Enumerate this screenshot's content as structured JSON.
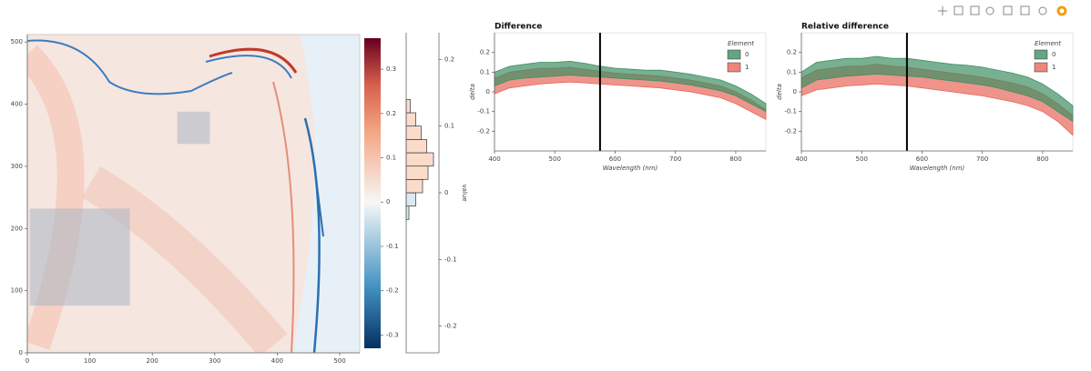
{
  "chart_data": [
    {
      "type": "image",
      "xlim": [
        0,
        532
      ],
      "ylim": [
        0,
        512
      ],
      "xticks": [
        0,
        100,
        200,
        300,
        400,
        500
      ],
      "yticks": [
        0,
        100,
        200,
        300,
        400,
        500
      ],
      "selections": [
        {
          "x": [
            240,
            292
          ],
          "y": [
            336,
            388
          ]
        },
        {
          "x": [
            4,
            164
          ],
          "y": [
            76,
            232
          ]
        }
      ]
    },
    {
      "type": "colorbar",
      "clim": [
        -0.33,
        0.37
      ],
      "ticks": [
        -0.3,
        -0.2,
        -0.1,
        0,
        0.1,
        0.2,
        0.3
      ]
    },
    {
      "type": "histogram",
      "ylabel": "value",
      "ylim": [
        -0.24,
        0.24
      ],
      "yticks": [
        -0.2,
        -0.1,
        0,
        0.1,
        0.2
      ],
      "xlim": [
        0,
        24
      ],
      "bins": [
        -0.04,
        -0.02,
        0,
        0.02,
        0.04,
        0.06,
        0.08,
        0.1,
        0.12,
        0.14
      ],
      "counts": [
        2,
        7,
        12,
        16,
        20,
        15,
        11,
        7,
        3
      ]
    },
    {
      "type": "area",
      "title": "Difference",
      "xlabel": "Wavelength (nm)",
      "ylabel": "delta",
      "xlim": [
        400,
        850
      ],
      "ylim": [
        -0.3,
        0.3
      ],
      "xticks": [
        400,
        500,
        600,
        700,
        800
      ],
      "yticks": [
        -0.2,
        -0.1,
        0,
        0.1,
        0.2
      ],
      "vline": 575,
      "legend_title": "Element",
      "x": [
        400,
        425,
        450,
        475,
        500,
        525,
        550,
        575,
        600,
        625,
        650,
        675,
        700,
        725,
        750,
        775,
        800,
        825,
        850
      ],
      "series": [
        {
          "name": "1",
          "color": "#e8665a",
          "upper": [
            0.07,
            0.1,
            0.11,
            0.12,
            0.12,
            0.125,
            0.115,
            0.105,
            0.095,
            0.09,
            0.085,
            0.08,
            0.07,
            0.06,
            0.045,
            0.03,
            0.0,
            -0.04,
            -0.09
          ],
          "lower": [
            -0.01,
            0.02,
            0.03,
            0.04,
            0.045,
            0.05,
            0.045,
            0.04,
            0.035,
            0.03,
            0.025,
            0.02,
            0.01,
            0.0,
            -0.015,
            -0.03,
            -0.06,
            -0.1,
            -0.14
          ]
        },
        {
          "name": "0",
          "color": "#3f8f63",
          "upper": [
            0.1,
            0.13,
            0.14,
            0.15,
            0.15,
            0.155,
            0.145,
            0.13,
            0.12,
            0.115,
            0.11,
            0.11,
            0.1,
            0.09,
            0.075,
            0.06,
            0.03,
            -0.01,
            -0.06
          ],
          "lower": [
            0.03,
            0.06,
            0.07,
            0.075,
            0.08,
            0.085,
            0.08,
            0.075,
            0.07,
            0.065,
            0.06,
            0.055,
            0.045,
            0.035,
            0.02,
            0.005,
            -0.02,
            -0.06,
            -0.1
          ]
        }
      ]
    },
    {
      "type": "area",
      "title": "Relative difference",
      "xlabel": "Wavelength (nm)",
      "ylabel": "delta",
      "xlim": [
        400,
        850
      ],
      "ylim": [
        -0.3,
        0.3
      ],
      "xticks": [
        400,
        500,
        600,
        700,
        800
      ],
      "yticks": [
        -0.2,
        -0.1,
        0,
        0.1,
        0.2
      ],
      "vline": 575,
      "legend_title": "Element",
      "x": [
        400,
        425,
        450,
        475,
        500,
        525,
        550,
        575,
        600,
        625,
        650,
        675,
        700,
        725,
        750,
        775,
        800,
        825,
        850
      ],
      "series": [
        {
          "name": "1",
          "color": "#e8665a",
          "upper": [
            0.07,
            0.11,
            0.12,
            0.13,
            0.13,
            0.14,
            0.13,
            0.125,
            0.115,
            0.105,
            0.095,
            0.085,
            0.075,
            0.06,
            0.045,
            0.025,
            -0.01,
            -0.06,
            -0.12
          ],
          "lower": [
            -0.02,
            0.01,
            0.02,
            0.03,
            0.035,
            0.04,
            0.035,
            0.03,
            0.02,
            0.01,
            0.0,
            -0.01,
            -0.02,
            -0.035,
            -0.05,
            -0.07,
            -0.1,
            -0.15,
            -0.22
          ]
        },
        {
          "name": "0",
          "color": "#3f8f63",
          "upper": [
            0.1,
            0.15,
            0.16,
            0.17,
            0.17,
            0.18,
            0.17,
            0.17,
            0.16,
            0.15,
            0.14,
            0.135,
            0.125,
            0.11,
            0.095,
            0.075,
            0.04,
            -0.01,
            -0.07
          ],
          "lower": [
            0.02,
            0.06,
            0.07,
            0.08,
            0.085,
            0.09,
            0.085,
            0.08,
            0.075,
            0.065,
            0.055,
            0.045,
            0.035,
            0.02,
            0.0,
            -0.02,
            -0.05,
            -0.1,
            -0.15
          ]
        }
      ]
    }
  ]
}
